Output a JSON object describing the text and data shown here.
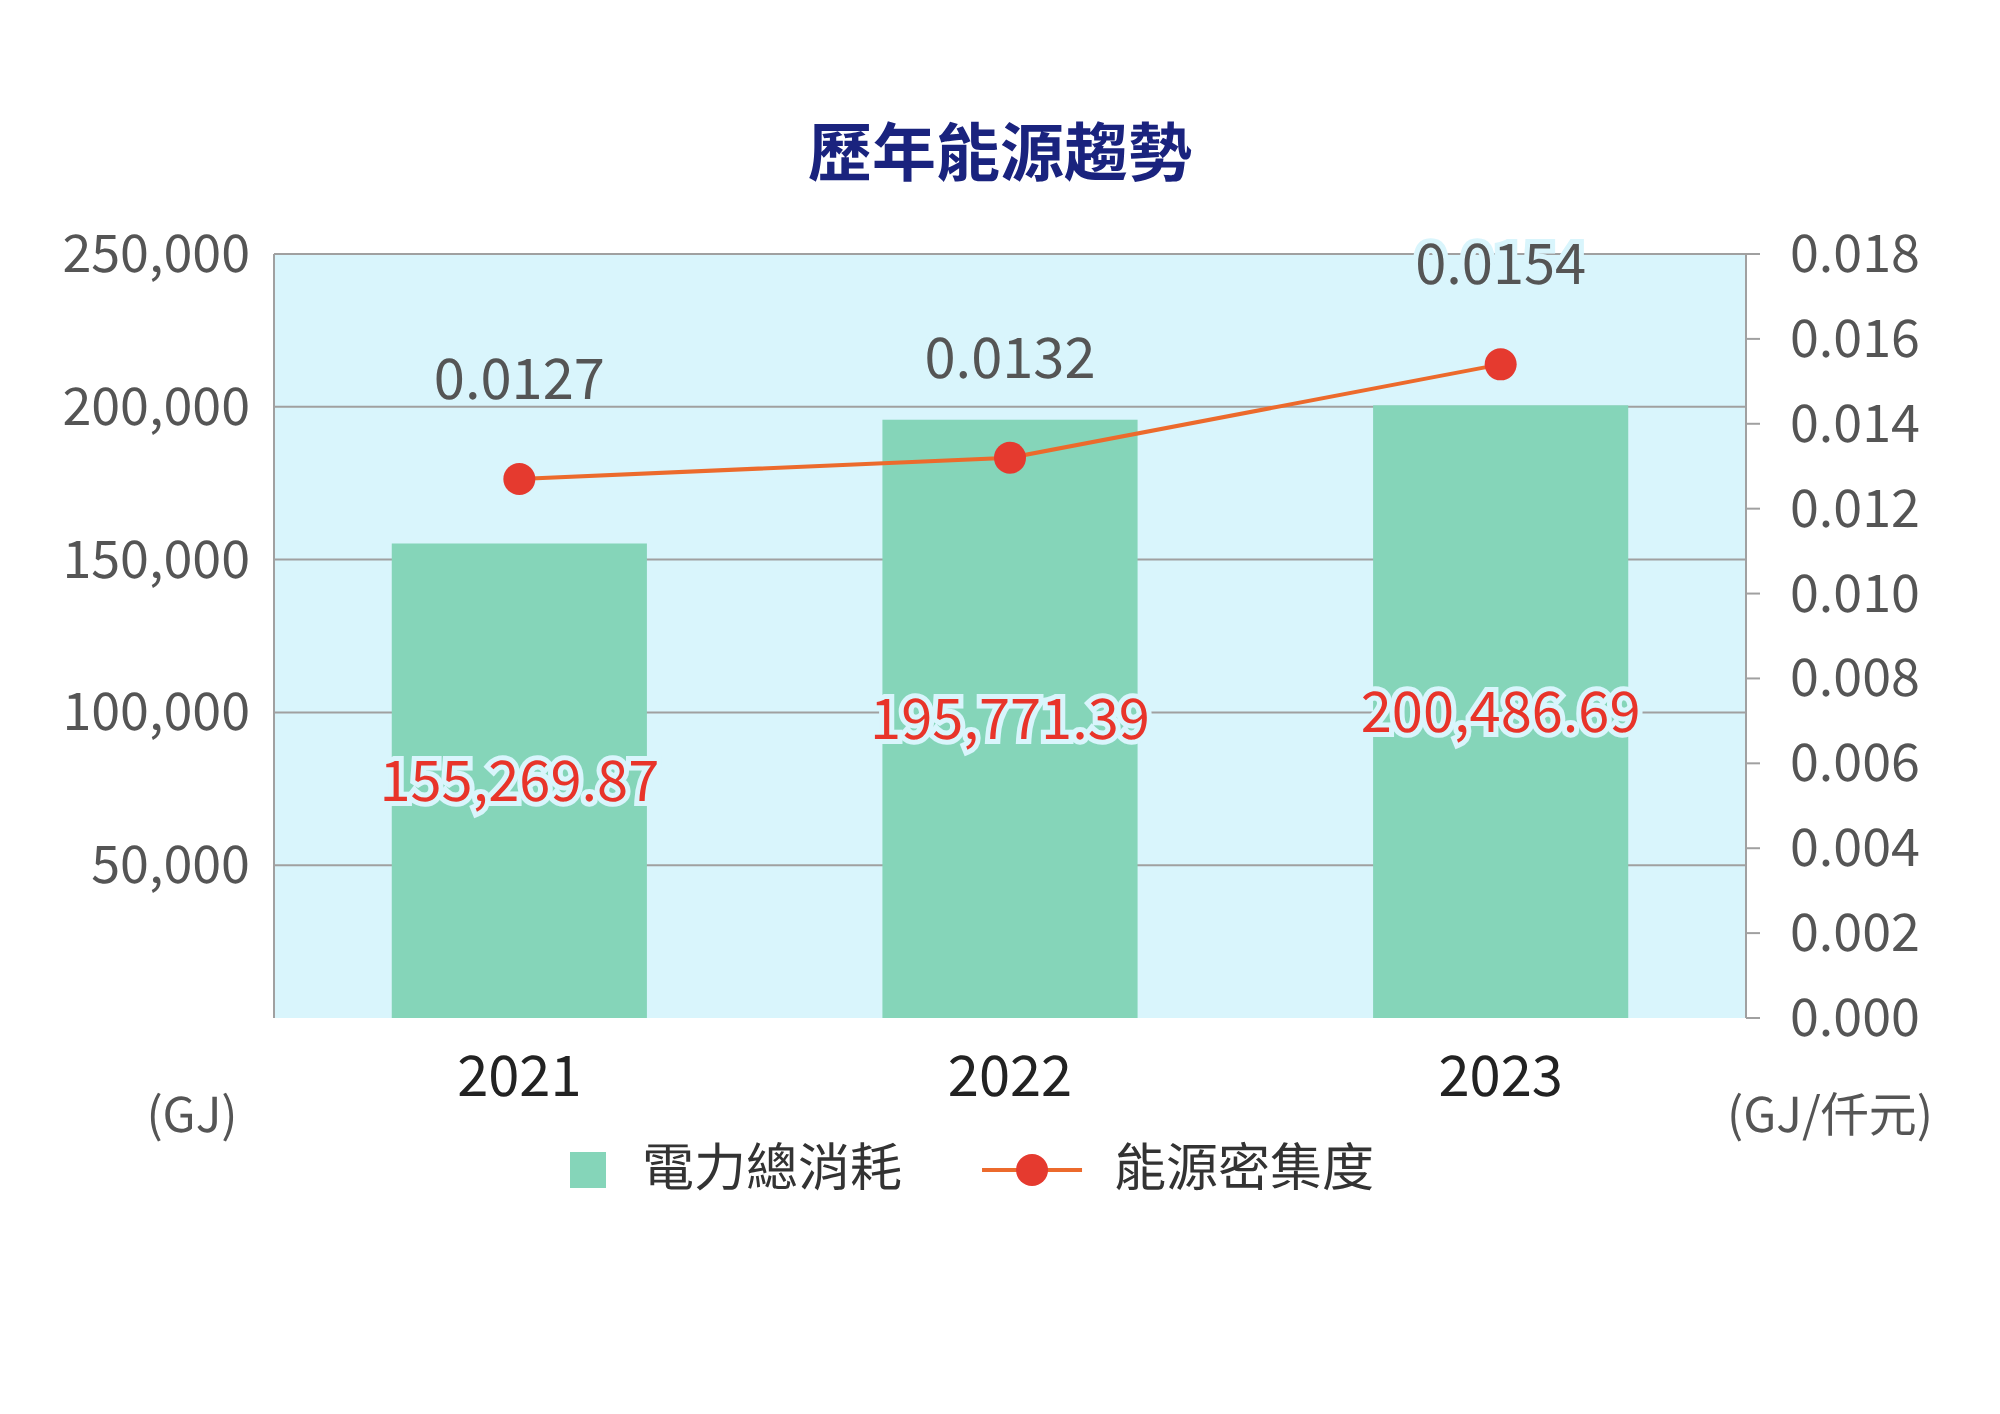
{
  "chart_data": {
    "type": "bar",
    "title": "歷年能源趨勢",
    "categories": [
      "2021",
      "2022",
      "2023"
    ],
    "series": [
      {
        "name": "電力總消耗",
        "color": "#85d5b9",
        "values": [
          155269.87,
          195771.39,
          200486.69
        ],
        "value_labels": [
          "155,269.87",
          "195,771.39",
          "200,486.69"
        ]
      },
      {
        "name": "能源密集度",
        "type": "line",
        "axis": "y2",
        "color": "#ec6a2c",
        "values": [
          0.0127,
          0.0132,
          0.0154
        ],
        "value_labels": [
          "0.0127",
          "0.0132",
          "0.0154"
        ]
      }
    ],
    "ylabel": "(GJ)",
    "y2label": "(GJ/仟元)",
    "ylim": [
      0,
      250000
    ],
    "yticks": [
      {
        "value": 50000,
        "label": "50,000"
      },
      {
        "value": 100000,
        "label": "100,000"
      },
      {
        "value": 150000,
        "label": "150,000"
      },
      {
        "value": 200000,
        "label": "200,000"
      },
      {
        "value": 250000,
        "label": "250,000"
      }
    ],
    "y2lim": [
      0,
      0.018
    ],
    "y2ticks": [
      {
        "value": 0,
        "label": "0.000"
      },
      {
        "value": 0.002,
        "label": "0.002"
      },
      {
        "value": 0.004,
        "label": "0.004"
      },
      {
        "value": 0.006,
        "label": "0.006"
      },
      {
        "value": 0.008,
        "label": "0.008"
      },
      {
        "value": 0.01,
        "label": "0.010"
      },
      {
        "value": 0.012,
        "label": "0.012"
      },
      {
        "value": 0.014,
        "label": "0.014"
      },
      {
        "value": 0.016,
        "label": "0.016"
      },
      {
        "value": 0.018,
        "label": "0.018"
      }
    ],
    "grid": "y",
    "legend": "bottom",
    "marker": "circle",
    "line_style": "solid"
  }
}
